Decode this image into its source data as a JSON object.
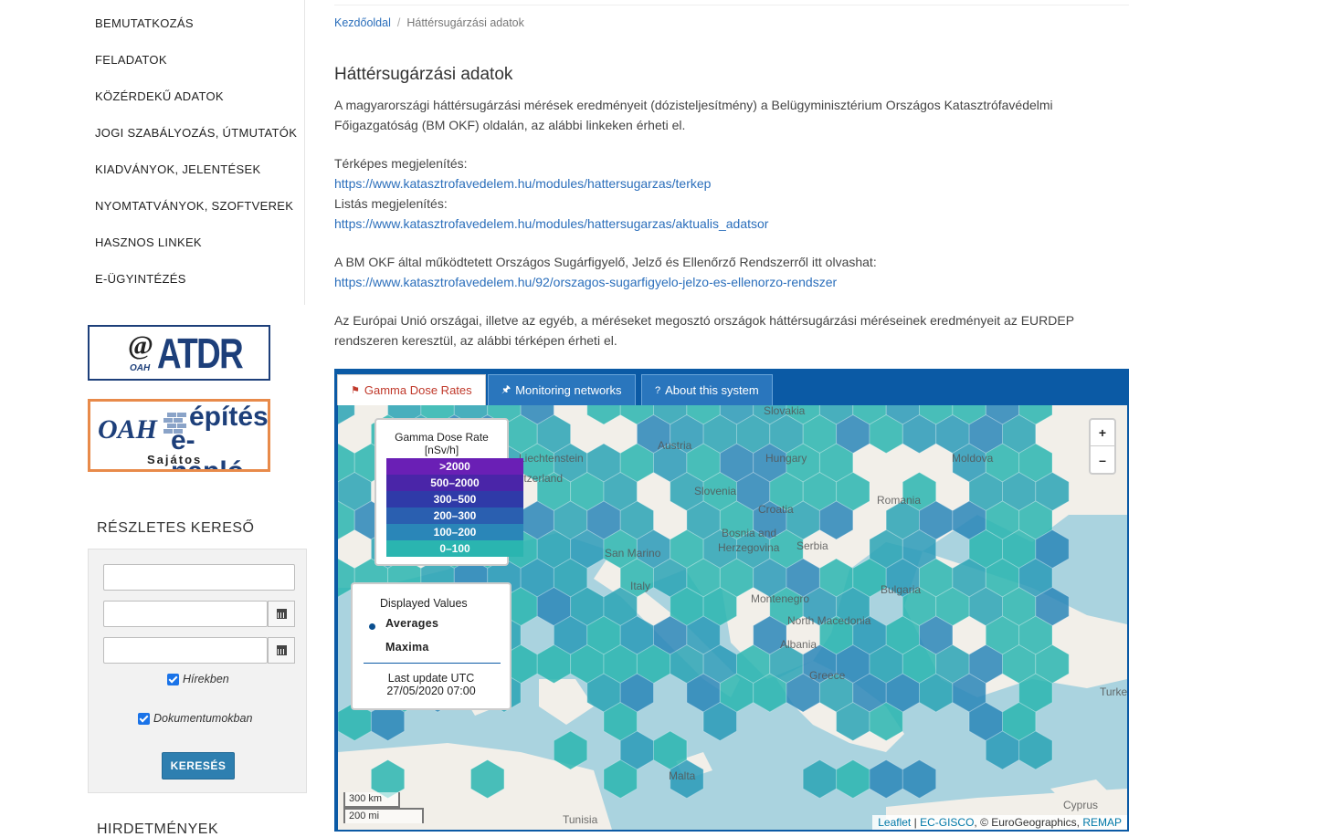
{
  "sidebar": {
    "menu": [
      "BEMUTATKOZÁS",
      "FELADATOK",
      "KÖZÉRDEKŰ ADATOK",
      "JOGI SZABÁLYOZÁS, ÚTMUTATÓK",
      "KIADVÁNYOK, JELENTÉSEK",
      "NYOMTATVÁNYOK, SZOFTVEREK",
      "HASZNOS LINKEK",
      "E-ÜGYINTÉZÉS"
    ],
    "atdr_banner": {
      "at": "@",
      "text": "ATDR",
      "sub": "OAH"
    },
    "enaplo_banner": {
      "oah": "OAH",
      "line1": "építési",
      "line2": "e-napló",
      "line3": "Sajátos"
    },
    "search": {
      "title": "RÉSZLETES KERESŐ",
      "checkbox_news": "Hírekben",
      "checkbox_docs": "Dokumentumokban",
      "button": "KERESÉS"
    },
    "ads_title": "HIRDETMÉNYEK"
  },
  "breadcrumb": {
    "home": "Kezdőoldal",
    "separator": "/",
    "current": "Háttérsugárzási adatok"
  },
  "content": {
    "title": "Háttérsugárzási adatok",
    "intro_line1": "A magyarországi háttérsugárzási mérések eredményeit (dózisteljesítmény) a Belügyminisztérium Országos Katasztrófavédelmi",
    "intro_line2": "Főigazgatóság (BM OKF) oldalán, az alábbi linkeken érheti el.",
    "map_label": "Térképes megjelenítés:",
    "map_link": "https://www.katasztrofavedelem.hu/modules/hattersugarzas/terkep",
    "list_label": "Listás megjelenítés:",
    "list_link": "https://www.katasztrofavedelem.hu/modules/hattersugarzas/aktualis_adatsor",
    "system_label": "A BM OKF által működtetett Országos Sugárfigyelő, Jelző és Ellenőrző Rendszerről itt olvashat:",
    "system_link": "https://www.katasztrofavedelem.hu/92/orszagos-sugarfigyelo-jelzo-es-ellenorzo-rendszer",
    "eu_line1": "Az Európai Unió országai, illetve az egyéb, a méréseket megosztó országok háttérsugárzási méréseinek eredményeit az EURDEP",
    "eu_line2": "rendszeren keresztül, az alábbi térképen érheti el."
  },
  "map_widget": {
    "tabs": [
      "Gamma Dose Rates",
      "Monitoring networks",
      "About this system"
    ],
    "legend": {
      "title": "Gamma Dose Rate [nSv/h]",
      "classes": [
        {
          "label": ">2000",
          "color": "#6a1fb5"
        },
        {
          "label": "500–2000",
          "color": "#4a25a8"
        },
        {
          "label": "300–500",
          "color": "#2f3aa8"
        },
        {
          "label": "200–300",
          "color": "#2a5fb0"
        },
        {
          "label": "100–200",
          "color": "#2a86b8"
        },
        {
          "label": "0–100",
          "color": "#2ab5b0"
        }
      ]
    },
    "display": {
      "title": "Displayed Values",
      "option_averages": "Averages",
      "option_maxima": "Maxima",
      "last_update_label": "Last update UTC",
      "last_update_value": "27/05/2020 07:00"
    },
    "zoom_in": "+",
    "zoom_out": "–",
    "scale_km": "300 km",
    "scale_mi": "200 mi",
    "attribution": {
      "leaflet": "Leaflet",
      "ecgisco": "EC-GISCO",
      "rest": ", © EuroGeographics, ",
      "remap": "REMAP"
    },
    "place_names": [
      "Slovakia",
      "Austria",
      "Hungary",
      "Liechtenstein",
      "Switzerland",
      "Slovenia",
      "Croatia",
      "Romania",
      "Moldova",
      "Bosnia and",
      "Herzegovina",
      "Serbia",
      "San Marino",
      "Italy",
      "Montenegro",
      "Bulgaria",
      "North Macedonia",
      "Albania",
      "Greece",
      "Tunisia",
      "Malta",
      "Cyprus",
      "Turkey"
    ]
  },
  "colors": {
    "link": "#2a6ebb",
    "widget_blue": "#0b5aa5",
    "button": "#2e7fb0",
    "sea": "#aad3df",
    "land": "#f2efe9"
  }
}
